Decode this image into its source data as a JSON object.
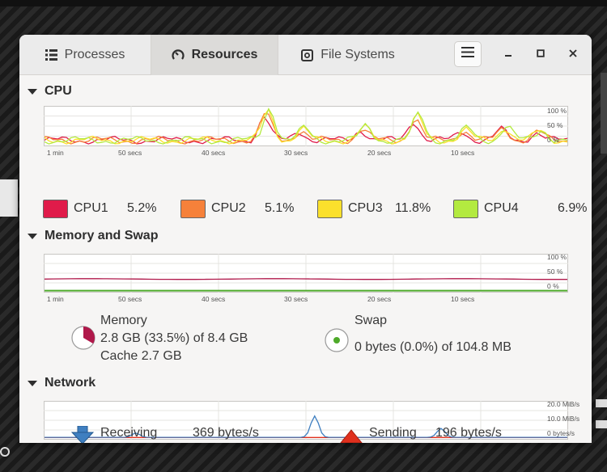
{
  "tabs": [
    {
      "label": "Processes",
      "icon": "list-icon"
    },
    {
      "label": "Resources",
      "icon": "gauge-icon"
    },
    {
      "label": "File Systems",
      "icon": "drive-icon"
    }
  ],
  "sections": {
    "cpu": {
      "title": "CPU"
    },
    "memory": {
      "title": "Memory and Swap"
    },
    "network": {
      "title": "Network"
    }
  },
  "x_ticks": [
    "1 min",
    "50 secs",
    "40 secs",
    "30 secs",
    "20 secs",
    "10 secs"
  ],
  "percent_ticks": [
    "100 %",
    "50 %",
    "0 %"
  ],
  "network_ticks": [
    "20.0 MiB/s",
    "10.0 MiB/s",
    "0 bytes/s"
  ],
  "cpu_legend": [
    {
      "name": "CPU1",
      "value": "5.2%",
      "color": "#e01b4a"
    },
    {
      "name": "CPU2",
      "value": "5.1%",
      "color": "#f6813a"
    },
    {
      "name": "CPU3",
      "value": "11.8%",
      "color": "#fbe02c"
    },
    {
      "name": "CPU4",
      "value": "6.9%",
      "color": "#b3ea40"
    }
  ],
  "memory": {
    "label": "Memory",
    "usage": "2.8 GB (33.5%) of 8.4 GB",
    "cache": "Cache 2.7 GB",
    "fraction": 0.335,
    "color": "#b0184a"
  },
  "swap": {
    "label": "Swap",
    "usage": "0 bytes (0.0%) of 104.8 MB",
    "fraction": 0.0,
    "color": "#4eaa2a"
  },
  "network": {
    "receiving_label": "Receiving",
    "receiving_value": "369 bytes/s",
    "sending_label": "Sending",
    "sending_value": "196 bytes/s",
    "receiving_color": "#3f7fc0",
    "sending_color": "#e0301e"
  }
}
